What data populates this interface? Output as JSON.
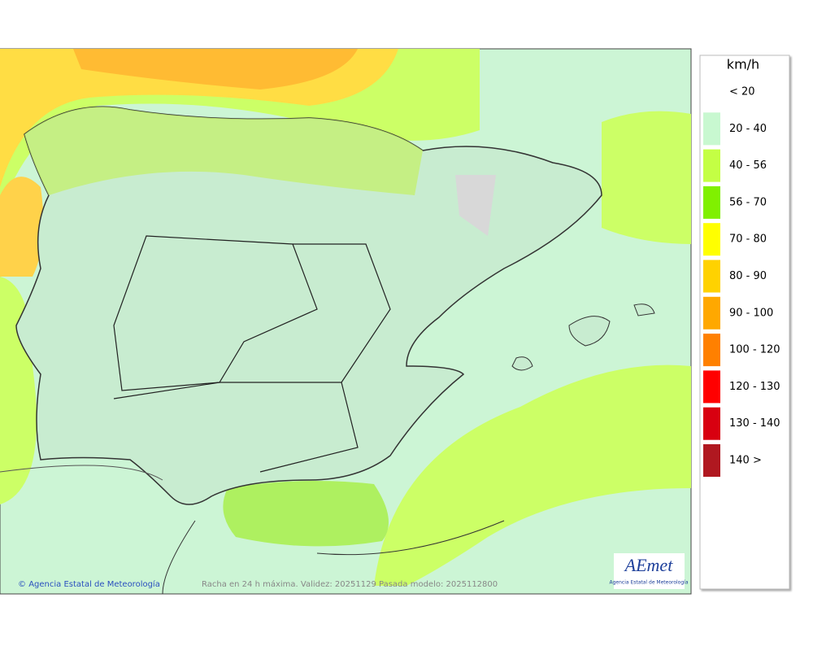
{
  "legend": {
    "unit": "km/h",
    "items": [
      {
        "label": "< 20",
        "color": "#ffffff"
      },
      {
        "label": "20 - 40",
        "color": "#c8f8d0"
      },
      {
        "label": "40 - 56",
        "color": "#c4ff44"
      },
      {
        "label": "56 - 70",
        "color": "#80f000"
      },
      {
        "label": "70 - 80",
        "color": "#ffff00"
      },
      {
        "label": "80 - 90",
        "color": "#ffd200"
      },
      {
        "label": "90 - 100",
        "color": "#ffa800"
      },
      {
        "label": "100 - 120",
        "color": "#ff8000"
      },
      {
        "label": "120 - 130",
        "color": "#ff0000"
      },
      {
        "label": "130 - 140",
        "color": "#d80010"
      },
      {
        "label": "140 >",
        "color": "#b01820"
      }
    ]
  },
  "footer": {
    "credit": "Agencia Estatal de Meteorología",
    "caption": "Racha en 24 h máxima. Validez: 20251129 Pasada modelo: 2025112800"
  },
  "logo": {
    "text": "AEmet",
    "subtitle": "Agencia Estatal de Meteorología"
  }
}
